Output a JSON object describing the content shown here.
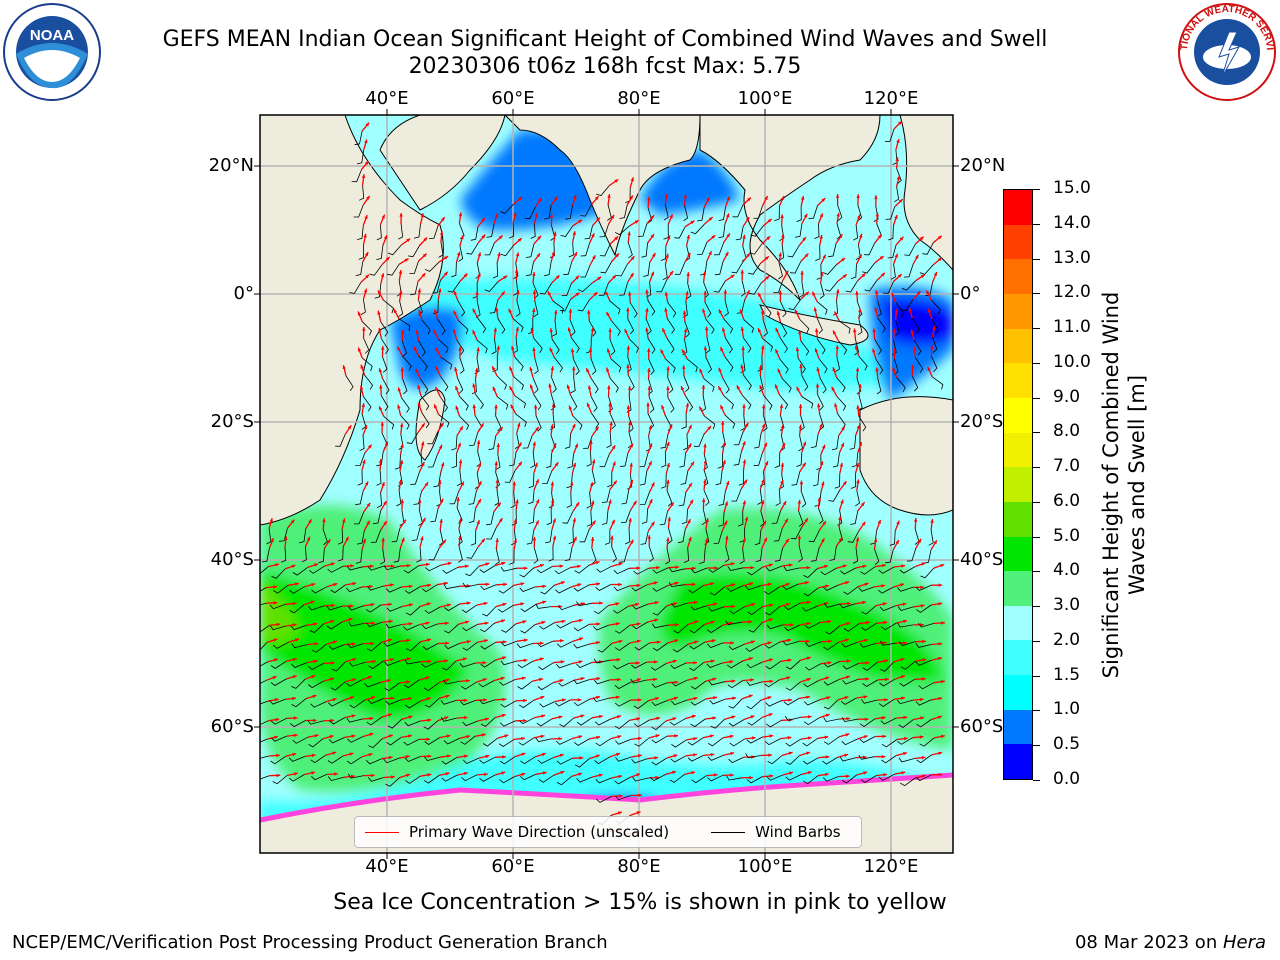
{
  "header": {
    "title_line1": "GEFS MEAN Indian Ocean Significant Height of Combined Wind Waves and Swell",
    "title_line2": "20230306 t06z 168h fcst   Max: 5.75"
  },
  "logos": {
    "left": {
      "name": "noaa-logo",
      "text": "NOAA"
    },
    "right": {
      "name": "nws-logo",
      "text": "NATIONAL WEATHER SERVICE"
    }
  },
  "map": {
    "lon_ticks": [
      "40°E",
      "60°E",
      "80°E",
      "100°E",
      "120°E"
    ],
    "lat_ticks": [
      "20°N",
      "0°",
      "20°S",
      "40°S",
      "60°S"
    ],
    "colors": {
      "land": "#eeecdc",
      "coast": "#000000",
      "grid": "#b4b4b4",
      "arrow": "#ff0000",
      "barb": "#000000",
      "ice": "#ff44dd"
    }
  },
  "colorbar": {
    "label": "Significant Height of Combined Wind Waves and Swell [m]",
    "ticks": [
      "0.0",
      "0.5",
      "1.0",
      "1.5",
      "2.0",
      "3.0",
      "4.0",
      "5.0",
      "6.0",
      "7.0",
      "8.0",
      "9.0",
      "10.0",
      "11.0",
      "12.0",
      "13.0",
      "14.0",
      "15.0"
    ],
    "colors": [
      "#0000ff",
      "#0078ff",
      "#00ffff",
      "#40ffff",
      "#a0ffff",
      "#50f07a",
      "#00e600",
      "#60e000",
      "#c0f000",
      "#f0f000",
      "#ffff00",
      "#ffe000",
      "#ffc000",
      "#ff9800",
      "#ff7000",
      "#ff4000",
      "#ff0000"
    ]
  },
  "legend": {
    "items": [
      {
        "label": "Primary Wave Direction (unscaled)",
        "color": "#ff0000"
      },
      {
        "label": "Wind Barbs",
        "color": "#000000"
      }
    ]
  },
  "footnote": "Sea Ice Concentration > 15% is shown in pink to yellow",
  "footer": {
    "left": "NCEP/EMC/Verification Post Processing Product Generation Branch",
    "right_prefix": "08 Mar 2023 on ",
    "right_host": "Hera"
  }
}
